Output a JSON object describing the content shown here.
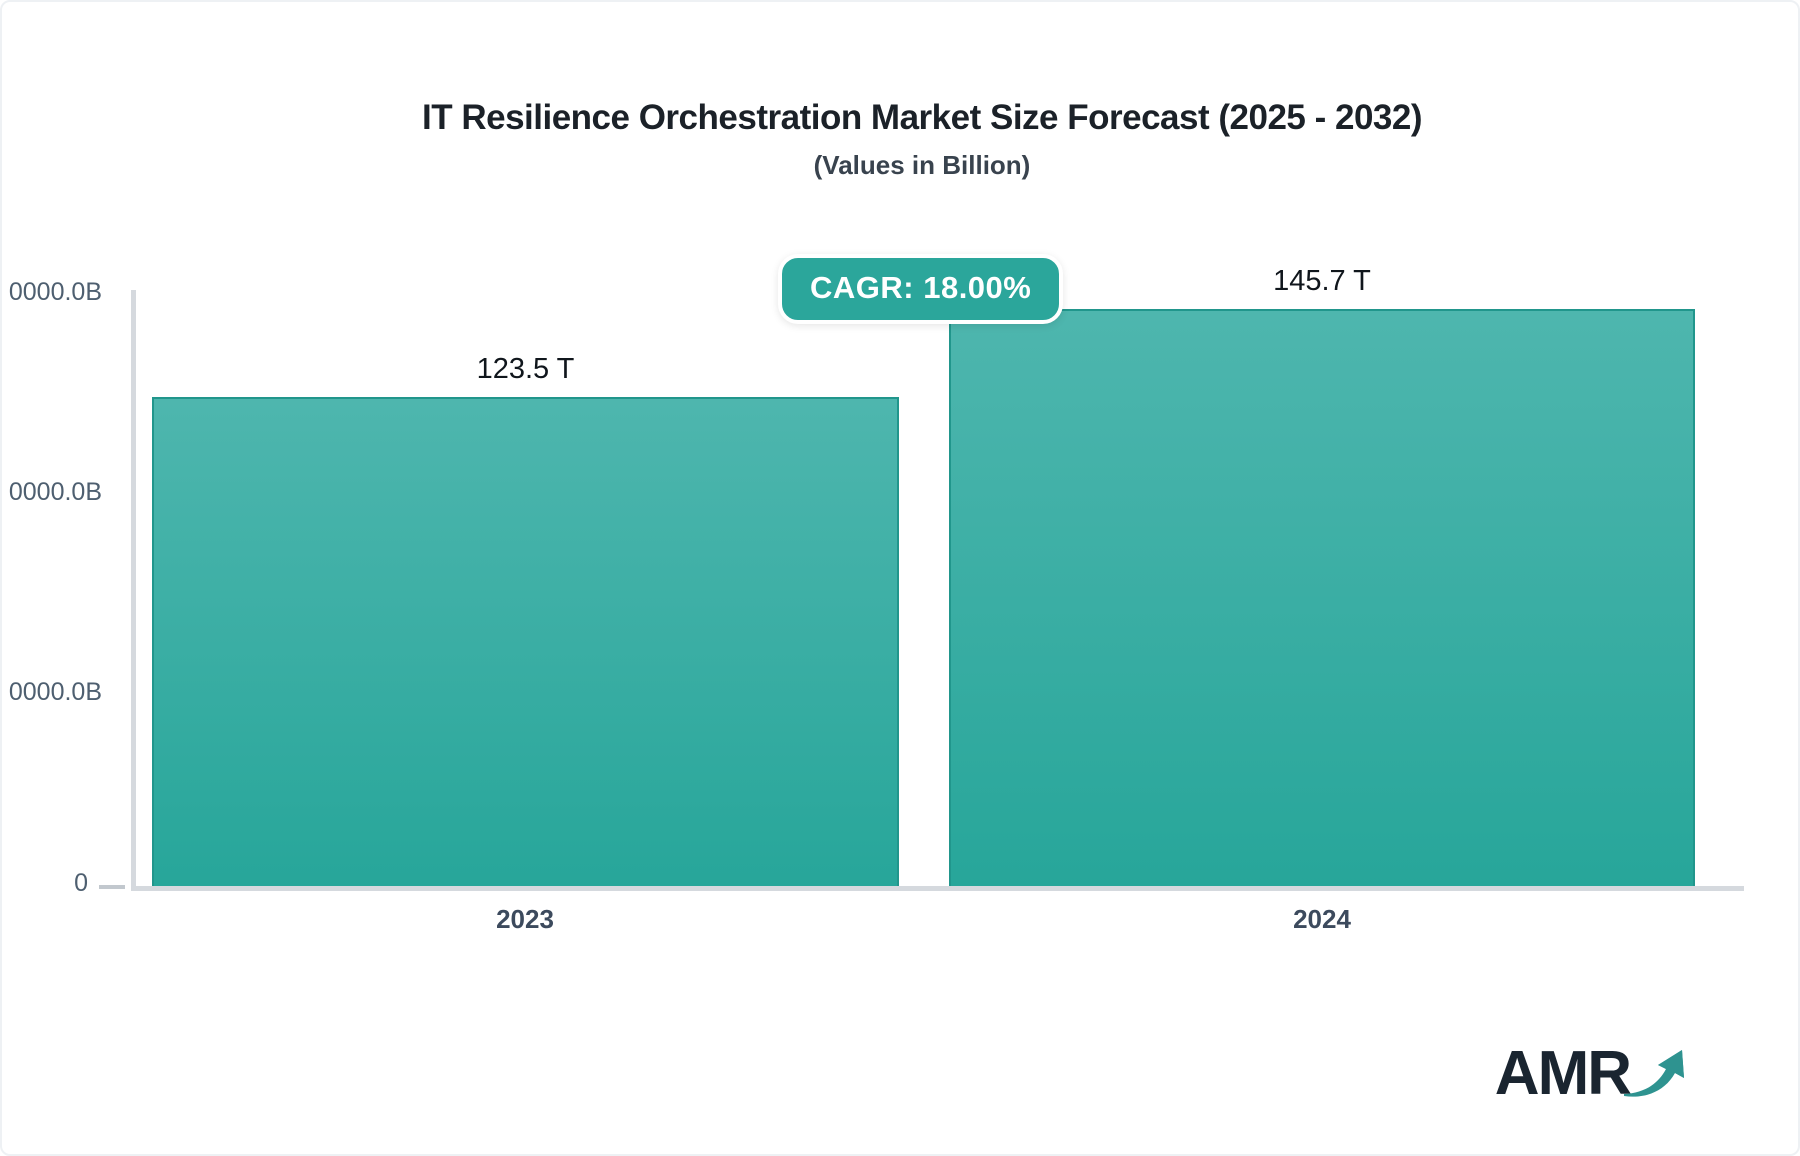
{
  "header": {
    "title": "IT Resilience Orchestration Market Size Forecast (2025 - 2032)",
    "subtitle": "(Values in Billion)"
  },
  "badge": {
    "label": "CAGR: 18.00%"
  },
  "chart_data": {
    "type": "bar",
    "title": "IT Resilience Orchestration Market Size Forecast (2025 - 2032)",
    "subtitle": "(Values in Billion)",
    "unit": "Billion",
    "categories": [
      "2023",
      "2024"
    ],
    "values": [
      123500,
      145700
    ],
    "value_labels": [
      "123.5 T",
      "145.7 T"
    ],
    "cagr_label": "CAGR: 18.00%",
    "ylim": [
      0,
      150000
    ],
    "y_tick_labels_visible": [
      "0000.0B",
      "0000.0B",
      "0000.0B",
      "0"
    ],
    "grid": false,
    "legend": false,
    "colors": {
      "bar_top": "#4EB6AE",
      "bar_bottom": "#27A69A",
      "bar_border": "#21968C",
      "badge_bg": "#2BA69B",
      "axis_line": "#d5d9de"
    }
  },
  "logo": {
    "text": "AMR"
  }
}
